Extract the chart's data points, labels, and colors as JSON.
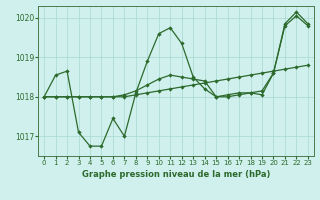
{
  "line1": {
    "x": [
      0,
      1,
      2,
      3,
      4,
      5,
      6,
      7,
      8,
      9,
      10,
      11,
      12,
      13,
      14,
      15,
      16,
      17,
      18,
      19,
      20,
      21,
      22,
      23
    ],
    "y": [
      1018.0,
      1018.55,
      1018.65,
      1017.1,
      1016.75,
      1016.75,
      1017.45,
      1017.0,
      1018.1,
      1018.9,
      1019.6,
      1019.75,
      1019.35,
      1018.5,
      1018.2,
      1018.0,
      1018.0,
      1018.05,
      1018.1,
      1018.05,
      1018.6,
      1019.85,
      1020.15,
      1019.85
    ]
  },
  "line2": {
    "x": [
      0,
      1,
      2,
      3,
      4,
      5,
      6,
      7,
      8,
      9,
      10,
      11,
      12,
      13,
      14,
      15,
      16,
      17,
      18,
      19,
      20,
      21,
      22,
      23
    ],
    "y": [
      1018.0,
      1018.0,
      1018.0,
      1018.0,
      1018.0,
      1018.0,
      1018.0,
      1018.0,
      1018.05,
      1018.1,
      1018.15,
      1018.2,
      1018.25,
      1018.3,
      1018.35,
      1018.4,
      1018.45,
      1018.5,
      1018.55,
      1018.6,
      1018.65,
      1018.7,
      1018.75,
      1018.8
    ]
  },
  "line3": {
    "x": [
      0,
      1,
      2,
      3,
      4,
      5,
      6,
      7,
      8,
      9,
      10,
      11,
      12,
      13,
      14,
      15,
      16,
      17,
      18,
      19,
      20,
      21,
      22,
      23
    ],
    "y": [
      1018.0,
      1018.0,
      1018.0,
      1018.0,
      1018.0,
      1018.0,
      1018.0,
      1018.05,
      1018.15,
      1018.3,
      1018.45,
      1018.55,
      1018.5,
      1018.45,
      1018.4,
      1018.0,
      1018.05,
      1018.1,
      1018.1,
      1018.15,
      1018.6,
      1019.8,
      1020.05,
      1019.8
    ]
  },
  "ylim": [
    1016.5,
    1020.3
  ],
  "xlim": [
    -0.5,
    23.5
  ],
  "yticks": [
    1017,
    1018,
    1019,
    1020
  ],
  "xticks": [
    0,
    1,
    2,
    3,
    4,
    5,
    6,
    7,
    8,
    9,
    10,
    11,
    12,
    13,
    14,
    15,
    16,
    17,
    18,
    19,
    20,
    21,
    22,
    23
  ],
  "line_color": "#2d6a2d",
  "bg_color": "#cff0ec",
  "grid_color": "#a8d8d0",
  "xlabel": "Graphe pression niveau de la mer (hPa)",
  "marker": "D",
  "markersize": 2.2,
  "linewidth": 0.9,
  "tick_fontsize": 5.5,
  "xlabel_fontsize": 6.0
}
